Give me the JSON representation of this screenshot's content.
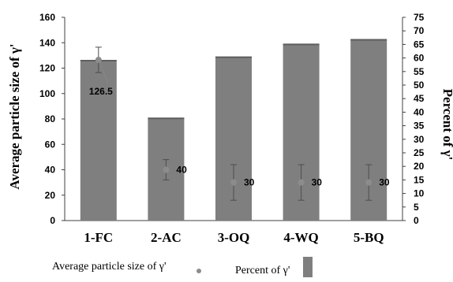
{
  "chart_data": {
    "type": "bar",
    "categories": [
      "1-FC",
      "2-AC",
      "3-OQ",
      "4-WQ",
      "5-BQ"
    ],
    "series": [
      {
        "name": "Percent of γ'",
        "axis": "right",
        "mark": "bar",
        "values": [
          59,
          37.7,
          60.3,
          65,
          66.7
        ]
      },
      {
        "name": "Average particle size of γ'",
        "axis": "left",
        "mark": "point",
        "values": [
          126.5,
          40,
          30,
          30,
          30
        ],
        "error": [
          10,
          8,
          14,
          14,
          14
        ],
        "labels": [
          "126.5",
          "40",
          "30",
          "30",
          "30"
        ]
      }
    ],
    "ylabel_left": "Average particle size of γ'",
    "ylabel_right": "Percent of γ'",
    "ylim_left": [
      0,
      160
    ],
    "yticks_left": [
      0,
      20,
      40,
      60,
      80,
      100,
      120,
      140,
      160
    ],
    "ylim_right": [
      0,
      75
    ],
    "yticks_right": [
      0,
      5,
      10,
      15,
      20,
      25,
      30,
      35,
      40,
      45,
      50,
      55,
      60,
      65,
      70,
      75
    ],
    "grid": false,
    "legend_position": "bottom",
    "colors": {
      "bar": "#7f7f7f",
      "bar_edge": "#5e5e5e",
      "point": "#8c8c8c",
      "error_bar": "#4d4d4d",
      "axis": "#404040",
      "text": "#000000"
    }
  },
  "legend": {
    "point_label": "Average particle size of γ'",
    "bar_label": "Percent of γ'"
  }
}
